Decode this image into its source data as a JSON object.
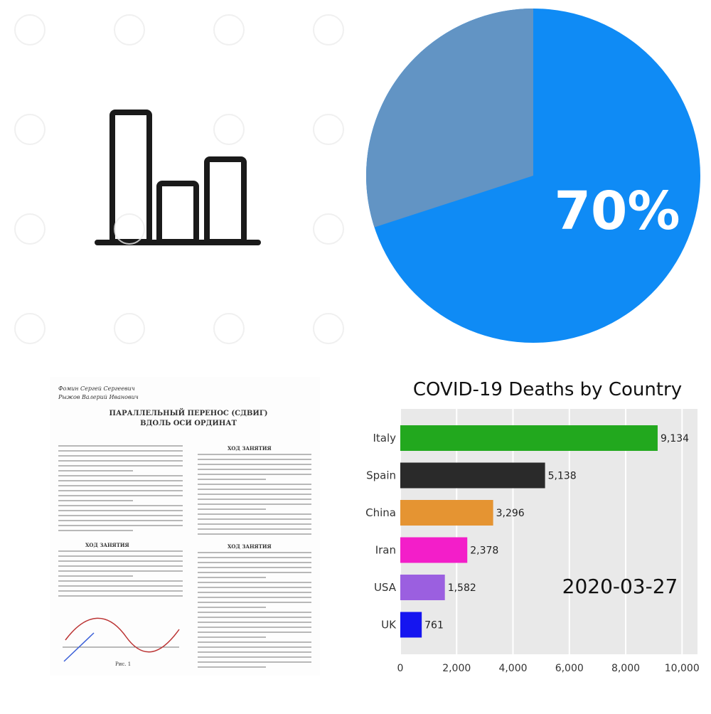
{
  "pie": {
    "label": "70%",
    "percent": 70,
    "colors": {
      "major": "#0f8bf5",
      "minor": "#6294c4",
      "label": "#ffffff"
    }
  },
  "document": {
    "authors": [
      "Фомин Сергей Сергеевич",
      "Рыжов Валерий Иванович"
    ],
    "title_line1": "ПАРАЛЛЕЛЬНЫЙ ПЕРЕНОС (СДВИГ)",
    "title_line2": "ВДОЛЬ ОСИ ОРДИНАТ",
    "left_heading": "ХОД ЗАНЯТИЯ",
    "right_heading": "ХОД ЗАНЯТИЯ",
    "right_heading2": "ХОД ЗАНЯТИЯ",
    "figure_caption": "Рис. 1"
  },
  "chart_data": {
    "type": "bar",
    "title": "COVID-19 Deaths by Country",
    "categories": [
      "Italy",
      "Spain",
      "China",
      "Iran",
      "USA",
      "UK"
    ],
    "values": [
      9134,
      5138,
      3296,
      2378,
      1582,
      761
    ],
    "value_labels": [
      "9,134",
      "5,138",
      "3,296",
      "2,378",
      "1,582",
      "761"
    ],
    "colors": [
      "#22a81e",
      "#2a2a2a",
      "#e59432",
      "#f31ec9",
      "#9b5fe0",
      "#1515f0"
    ],
    "xlim": [
      0,
      10000
    ],
    "xticks": [
      0,
      2000,
      4000,
      6000,
      8000,
      10000
    ],
    "xtick_labels": [
      "0",
      "2,000",
      "4,000",
      "6,000",
      "8,000",
      "10,000"
    ],
    "date": "2020-03-27",
    "grid": true,
    "background": "#e9e9e9",
    "orientation": "horizontal"
  }
}
